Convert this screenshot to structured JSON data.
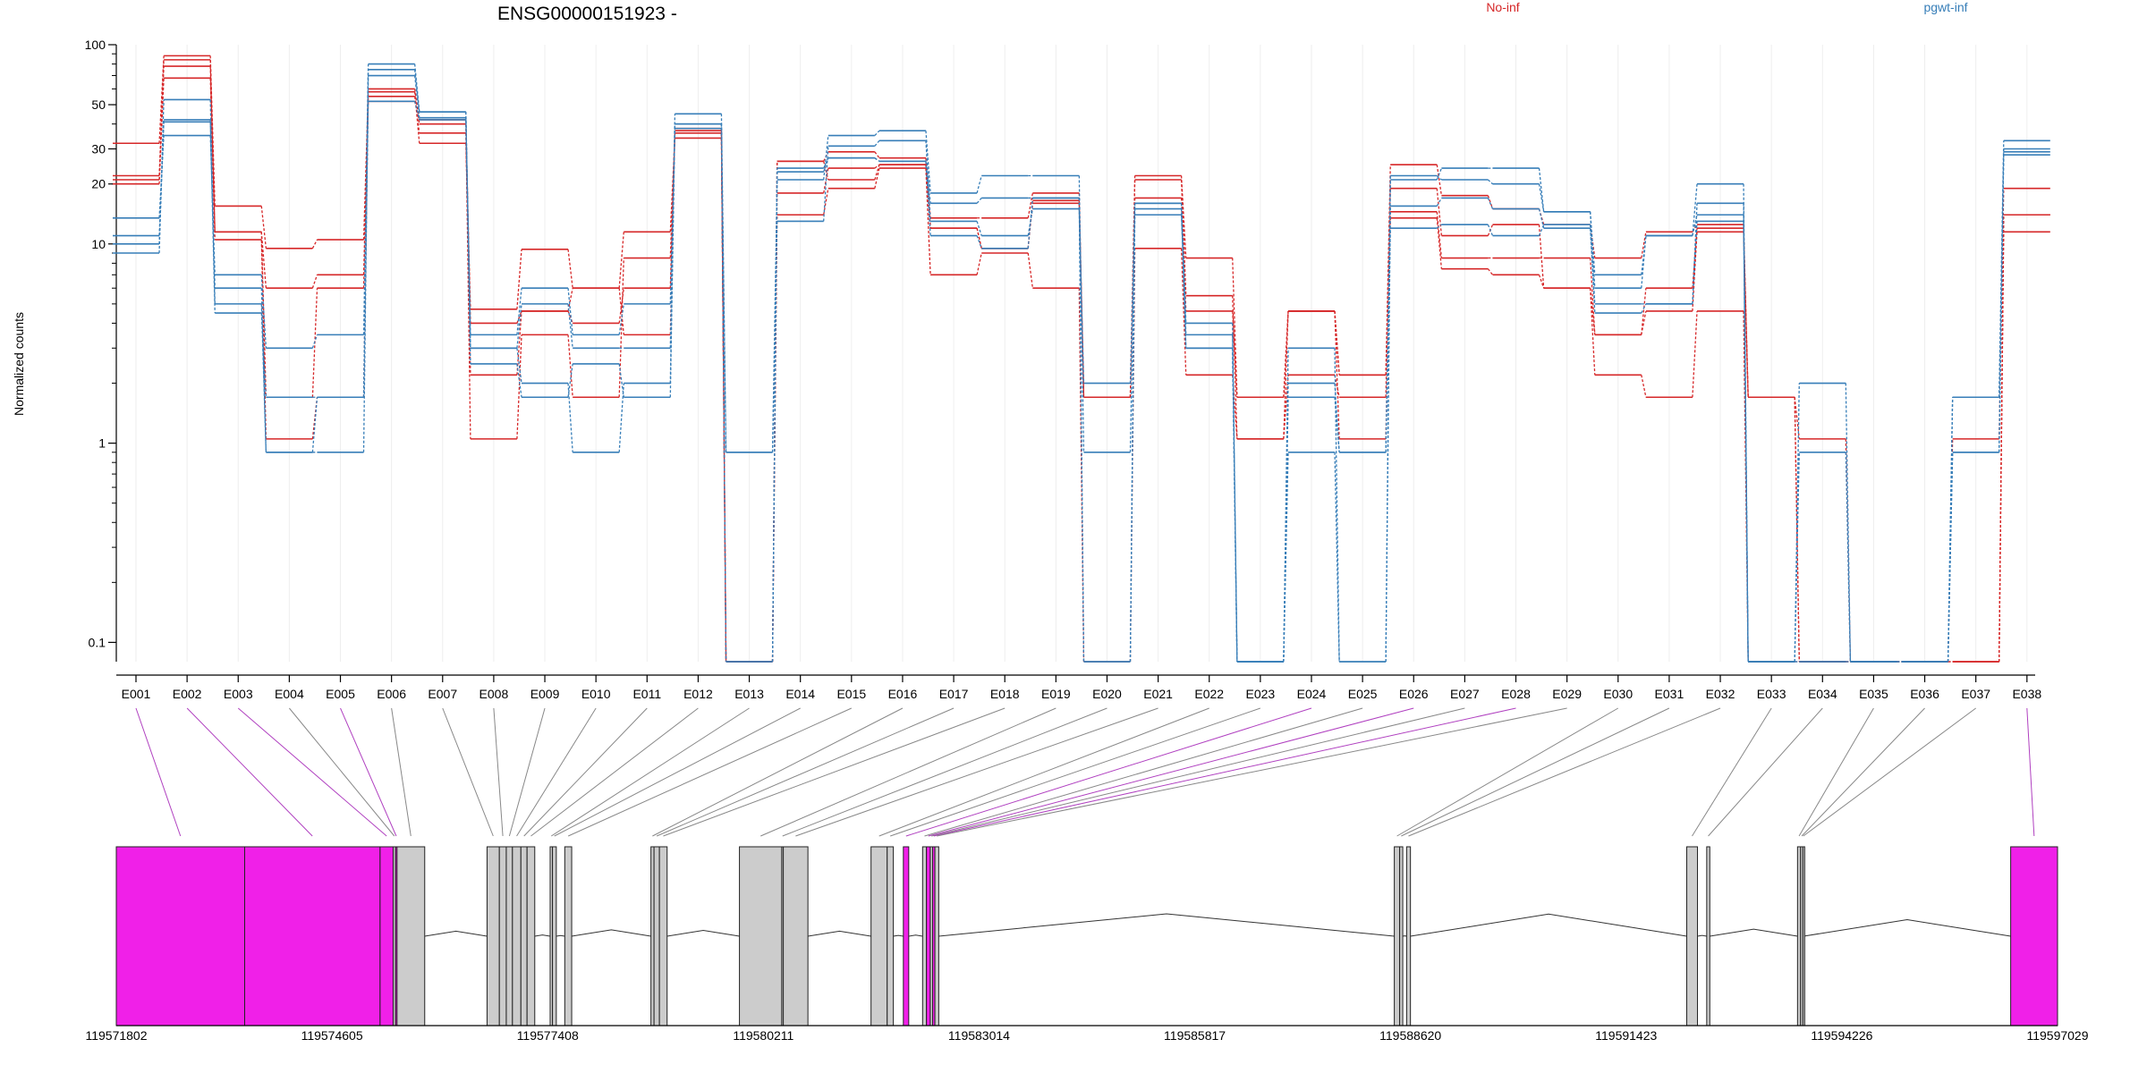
{
  "chart_data": {
    "type": "line",
    "title": "ENSG00000151923 -",
    "ylabel": "Normalized counts",
    "yscale": "log",
    "ylim": [
      0.08,
      100
    ],
    "yticks": [
      0.1,
      1,
      10,
      20,
      30,
      50,
      100
    ],
    "ytick_labels": [
      "0.1",
      "1",
      "10",
      "20",
      "30",
      "50",
      "100"
    ],
    "grid": "vertical",
    "legend_position": "top",
    "categories": [
      "E001",
      "E002",
      "E003",
      "E004",
      "E005",
      "E006",
      "E007",
      "E008",
      "E009",
      "E010",
      "E011",
      "E012",
      "E013",
      "E014",
      "E015",
      "E016",
      "E017",
      "E018",
      "E019",
      "E020",
      "E021",
      "E022",
      "E023",
      "E024",
      "E025",
      "E026",
      "E027",
      "E028",
      "E029",
      "E030",
      "E031",
      "E032",
      "E033",
      "E034",
      "E035",
      "E036",
      "E037",
      "E038"
    ],
    "series": [
      {
        "group": "No-inf",
        "color": "#d62728",
        "values": [
          32,
          88,
          15.5,
          9.5,
          10.5,
          58,
          32,
          4.7,
          9.4,
          6,
          11.5,
          34,
          0.08,
          26,
          29,
          27,
          13.5,
          13.5,
          18,
          1.7,
          22,
          8.5,
          1.7,
          4.6,
          2.2,
          25,
          17.5,
          15,
          12.5,
          8.5,
          11.5,
          12.5,
          1.7,
          1.05,
          0.08,
          0.08,
          1.05,
          19
        ]
      },
      {
        "group": "No-inf",
        "color": "#d62728",
        "values": [
          22,
          84,
          11.5,
          6,
          7,
          55,
          36,
          2.2,
          4.6,
          4,
          6,
          36,
          0.08,
          18,
          24,
          25,
          12,
          9.5,
          16.5,
          1.7,
          21,
          5.5,
          1.05,
          2.2,
          1.7,
          19,
          11,
          12.5,
          6,
          3.5,
          6,
          12,
          1.7,
          0.08,
          0.08,
          0.08,
          0.08,
          14
        ]
      },
      {
        "group": "No-inf",
        "color": "#d62728",
        "values": [
          20,
          68,
          10.5,
          1.05,
          1.7,
          60,
          40,
          1.05,
          3.5,
          1.7,
          8.5,
          37,
          0.08,
          14,
          19,
          24,
          7,
          9,
          6,
          0.08,
          9.5,
          2.2,
          1.05,
          4.6,
          1.05,
          13.5,
          7.5,
          7,
          6,
          2.2,
          1.7,
          4.6,
          0.08,
          0.08,
          0.08,
          0.08,
          0.08,
          11.5
        ]
      },
      {
        "group": "No-inf",
        "color": "#d62728",
        "values": [
          21,
          78,
          11.5,
          1.7,
          6,
          52,
          42,
          4,
          4.6,
          6,
          3.5,
          38,
          0.08,
          26,
          21,
          25,
          12,
          9.5,
          16,
          1.7,
          17,
          4.6,
          1.7,
          4.6,
          2.2,
          14.5,
          8.5,
          8.5,
          8.5,
          3.5,
          4.6,
          11.5,
          1.7,
          0.08,
          0.08,
          0.08,
          0.08,
          14
        ]
      },
      {
        "group": "pgwt-inf",
        "color": "#377eb8",
        "values": [
          13.5,
          35,
          7,
          3,
          3.5,
          80,
          46,
          3,
          5,
          3,
          3,
          45,
          0.9,
          21,
          35,
          37,
          18,
          22,
          22,
          0.9,
          15,
          3,
          0.08,
          1.7,
          0.9,
          21,
          24,
          24,
          14.5,
          7,
          11,
          20,
          0.08,
          2,
          0.08,
          0.08,
          1.7,
          33
        ]
      },
      {
        "group": "pgwt-inf",
        "color": "#377eb8",
        "values": [
          11,
          41,
          6,
          0.9,
          0.9,
          70,
          43,
          3.5,
          6,
          3.5,
          5,
          38,
          0.9,
          13,
          31,
          33,
          13,
          11,
          15,
          2,
          16,
          4,
          0.08,
          3,
          0.08,
          22,
          21,
          20,
          14.5,
          6,
          11,
          14,
          0.08,
          0.9,
          0.08,
          0.08,
          1.7,
          30
        ]
      },
      {
        "group": "pgwt-inf",
        "color": "#377eb8",
        "values": [
          10,
          42,
          4.5,
          1.7,
          1.7,
          52,
          42,
          3,
          2,
          0.9,
          2,
          40,
          0.08,
          23,
          27,
          26,
          11,
          9.5,
          17,
          0.08,
          16,
          3,
          0.08,
          2,
          0.9,
          12,
          12.5,
          11,
          12.5,
          4.5,
          5,
          13,
          0.08,
          0.08,
          0.08,
          0.08,
          0.9,
          29
        ]
      },
      {
        "group": "pgwt-inf",
        "color": "#377eb8",
        "values": [
          9,
          53,
          5,
          0.9,
          1.7,
          75,
          46,
          2.5,
          1.7,
          2.5,
          1.7,
          40,
          0.08,
          24,
          27,
          26,
          16,
          17,
          17,
          0.08,
          14,
          3.5,
          0.08,
          0.9,
          0.08,
          15.5,
          17,
          15,
          12,
          5,
          5,
          16,
          0.08,
          0.08,
          0.08,
          0.08,
          0.9,
          28
        ]
      }
    ],
    "legend": [
      {
        "label": "No-inf",
        "color": "#d62728"
      },
      {
        "label": "pgwt-inf",
        "color": "#377eb8"
      }
    ],
    "gene_model": {
      "coord_labels": [
        "119571802",
        "119574605",
        "119577408",
        "119580211",
        "119583014",
        "119585817",
        "119588620",
        "119591423",
        "119594226",
        "119597029"
      ],
      "coord_range": [
        119571802,
        119597029
      ],
      "exon_bins": [
        {
          "id": "E001",
          "start": 119571802,
          "end": 119573470,
          "highlight": true
        },
        {
          "id": "E002",
          "start": 119573470,
          "end": 119575230,
          "highlight": true
        },
        {
          "id": "E003",
          "start": 119575230,
          "end": 119575400,
          "highlight": true
        },
        {
          "id": "E004",
          "start": 119575400,
          "end": 119575430,
          "highlight": false
        },
        {
          "id": "E005",
          "start": 119575430,
          "end": 119575450,
          "highlight": true
        },
        {
          "id": "E006",
          "start": 119575450,
          "end": 119575810,
          "highlight": false
        },
        {
          "id": "E007",
          "start": 119576620,
          "end": 119576780,
          "highlight": false
        },
        {
          "id": "E008",
          "start": 119576780,
          "end": 119576870,
          "highlight": false
        },
        {
          "id": "E009",
          "start": 119576870,
          "end": 119576950,
          "highlight": false
        },
        {
          "id": "E010",
          "start": 119576950,
          "end": 119577060,
          "highlight": false
        },
        {
          "id": "E011",
          "start": 119577060,
          "end": 119577140,
          "highlight": false
        },
        {
          "id": "E012",
          "start": 119577140,
          "end": 119577240,
          "highlight": false
        },
        {
          "id": "E013",
          "start": 119577440,
          "end": 119577470,
          "highlight": false
        },
        {
          "id": "E014",
          "start": 119577470,
          "end": 119577520,
          "highlight": false
        },
        {
          "id": "E015",
          "start": 119577630,
          "end": 119577720,
          "highlight": false
        },
        {
          "id": "E016",
          "start": 119578750,
          "end": 119578790,
          "highlight": false
        },
        {
          "id": "E017",
          "start": 119578790,
          "end": 119578860,
          "highlight": false
        },
        {
          "id": "E018",
          "start": 119578860,
          "end": 119578960,
          "highlight": false
        },
        {
          "id": "E019",
          "start": 119579900,
          "end": 119580450,
          "highlight": false
        },
        {
          "id": "E020",
          "start": 119580450,
          "end": 119580470,
          "highlight": false
        },
        {
          "id": "E021",
          "start": 119580470,
          "end": 119580790,
          "highlight": false
        },
        {
          "id": "E022",
          "start": 119581610,
          "end": 119581820,
          "highlight": false
        },
        {
          "id": "E023",
          "start": 119581820,
          "end": 119581900,
          "highlight": false
        },
        {
          "id": "E024",
          "start": 119582030,
          "end": 119582100,
          "highlight": true
        },
        {
          "id": "E025",
          "start": 119582280,
          "end": 119582330,
          "highlight": false
        },
        {
          "id": "E026",
          "start": 119582330,
          "end": 119582380,
          "highlight": true
        },
        {
          "id": "E027",
          "start": 119582380,
          "end": 119582410,
          "highlight": false
        },
        {
          "id": "E028",
          "start": 119582410,
          "end": 119582440,
          "highlight": true
        },
        {
          "id": "E029",
          "start": 119582440,
          "end": 119582490,
          "highlight": false
        },
        {
          "id": "E030",
          "start": 119588410,
          "end": 119588480,
          "highlight": false
        },
        {
          "id": "E031",
          "start": 119588480,
          "end": 119588520,
          "highlight": false
        },
        {
          "id": "E032",
          "start": 119588570,
          "end": 119588620,
          "highlight": false
        },
        {
          "id": "E033",
          "start": 119592210,
          "end": 119592350,
          "highlight": false
        },
        {
          "id": "E034",
          "start": 119592470,
          "end": 119592510,
          "highlight": false
        },
        {
          "id": "E035",
          "start": 119593650,
          "end": 119593690,
          "highlight": false
        },
        {
          "id": "E036",
          "start": 119593690,
          "end": 119593720,
          "highlight": false
        },
        {
          "id": "E037",
          "start": 119593720,
          "end": 119593730,
          "highlight": false
        },
        {
          "id": "E038",
          "start": 119596420,
          "end": 119597029,
          "highlight": true
        }
      ]
    }
  }
}
